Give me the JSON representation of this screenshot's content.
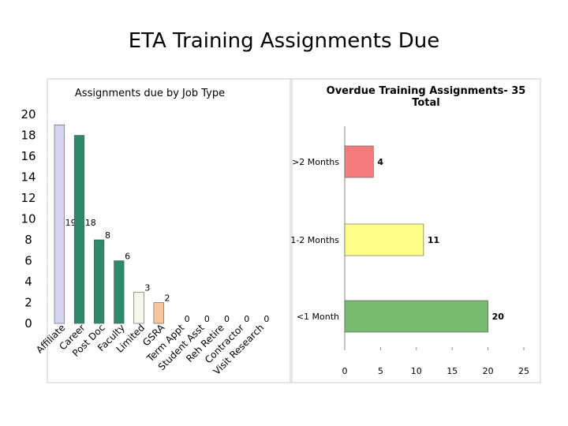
{
  "title": "ETA Training Assignments Due",
  "chart_data": [
    {
      "type": "bar",
      "orientation": "vertical",
      "title": "Assignments due by Job Type",
      "categories": [
        "Affiliate",
        "Career",
        "Post Doc",
        "Faculty",
        "Limited",
        "GSRA",
        "Term Appt",
        "Student Asst",
        "Reh Retire",
        "Contractor",
        "Visit Research"
      ],
      "values": [
        19,
        18,
        8,
        6,
        3,
        2,
        0,
        0,
        0,
        0,
        0
      ],
      "colors": [
        "#d4d4f0",
        "#2e8b6a",
        "#2e8b6a",
        "#2e8b6a",
        "#f8f8e8",
        "#f8c89c",
        "#2e8b6a",
        "#2e8b6a",
        "#2e8b6a",
        "#2e8b6a",
        "#2e8b6a"
      ],
      "ylim": [
        0,
        20
      ],
      "yticks": [
        0,
        2,
        4,
        6,
        8,
        10,
        12,
        14,
        16,
        18,
        20
      ]
    },
    {
      "type": "bar",
      "orientation": "horizontal",
      "title": "Overdue Training Assignments- 35 Total",
      "categories": [
        ">2 Months",
        "1-2 Months",
        "<1 Month"
      ],
      "values": [
        4,
        11,
        20
      ],
      "colors": [
        "#f47c7c",
        "#ffff88",
        "#77bb6e"
      ],
      "xlim": [
        0,
        25
      ],
      "xticks": [
        0,
        5,
        10,
        15,
        20,
        25
      ]
    }
  ]
}
